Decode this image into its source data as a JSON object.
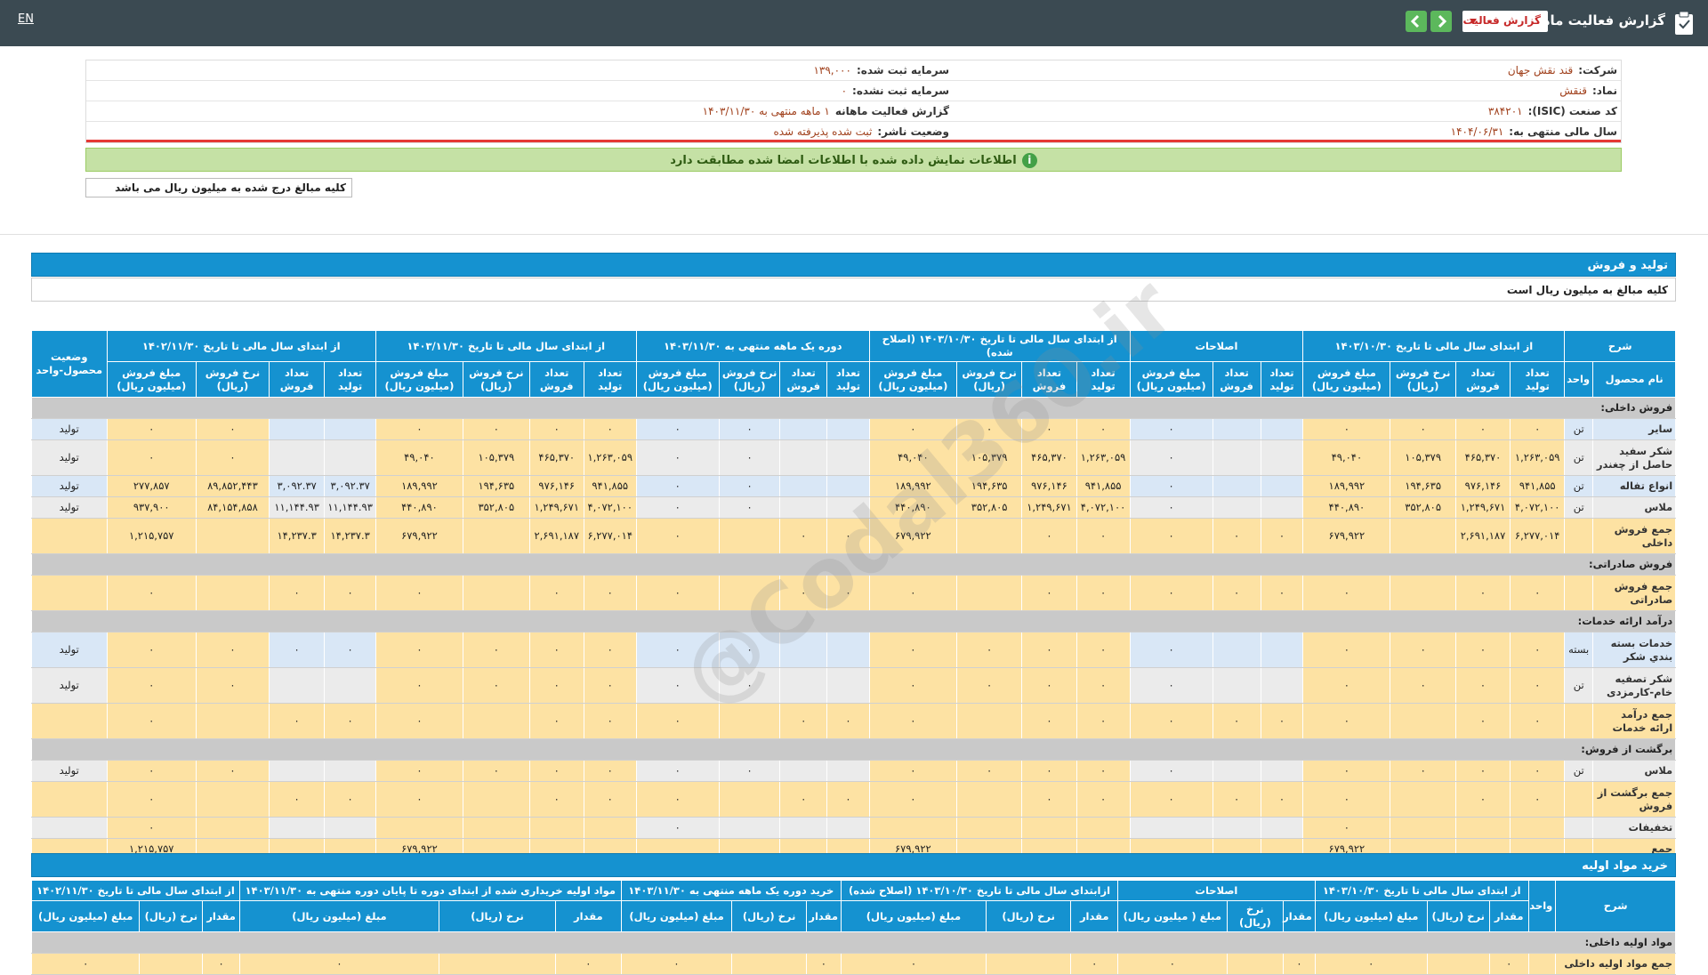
{
  "header": {
    "title": "گزارش فعالیت ماهانه",
    "report_select": "گزارش فعالیت",
    "language": "EN"
  },
  "info": {
    "rows": [
      [
        {
          "label": "شرکت:",
          "value": "قند نقش جهان"
        },
        {
          "label": "سرمایه ثبت شده:",
          "value": "۱۳۹,۰۰۰"
        }
      ],
      [
        {
          "label": "نماد:",
          "value": "قنقش"
        },
        {
          "label": "سرمایه ثبت نشده:",
          "value": "۰"
        }
      ],
      [
        {
          "label": "کد صنعت (ISIC):",
          "value": "۳۸۴۲۰۱"
        },
        {
          "label": "گزارش فعالیت ماهانه",
          "value": "۱ ماهه منتهی به ۱۴۰۳/۱۱/۳۰"
        }
      ],
      [
        {
          "label": "سال مالی منتهی به:",
          "value": "۱۴۰۴/۰۶/۳۱"
        },
        {
          "label": "وضعیت ناشر:",
          "value": "ثبت شده پذیرفته شده"
        }
      ]
    ]
  },
  "notice": "اطلاعات نمایش داده شده با اطلاعات امضا شده مطابقت دارد",
  "amount_note": "کلیه مبالغ درج شده به میلیون ریال می باشد",
  "watermark": "@Codal360.ir",
  "production_sales": {
    "title": "تولید و فروش",
    "subtitle": "کلیه مبالغ به میلیون ریال است",
    "groups": [
      {
        "label": "شرح",
        "sub": [
          "نام محصول",
          "واحد"
        ]
      },
      {
        "label": "از ابتدای سال مالی تا تاریخ ۱۴۰۳/۱۰/۳۰",
        "sub": [
          "تعداد تولید",
          "تعداد فروش",
          "نرخ فروش (ریال)",
          "مبلغ فروش (میلیون ریال)"
        ]
      },
      {
        "label": "اصلاحات",
        "sub": [
          "تعداد تولید",
          "تعداد فروش",
          "مبلغ فروش (میلیون ریال)"
        ]
      },
      {
        "label": "از ابتدای سال مالی تا تاریخ ۱۴۰۳/۱۰/۳۰ (اصلاح شده)",
        "sub": [
          "تعداد تولید",
          "تعداد فروش",
          "نرخ فروش (ریال)",
          "مبلغ فروش (میلیون ریال)"
        ]
      },
      {
        "label": "دوره یک ماهه منتهی به ۱۴۰۳/۱۱/۳۰",
        "sub": [
          "تعداد تولید",
          "تعداد فروش",
          "نرخ فروش (ریال)",
          "مبلغ فروش (میلیون ریال)"
        ]
      },
      {
        "label": "از ابتدای سال مالی تا تاریخ ۱۴۰۳/۱۱/۳۰",
        "sub": [
          "تعداد تولید",
          "تعداد فروش",
          "نرخ فروش (ریال)",
          "مبلغ فروش (میلیون ریال)"
        ]
      },
      {
        "label": "از ابتدای سال مالی تا تاریخ ۱۴۰۲/۱۱/۳۰",
        "sub": [
          "تعداد تولید",
          "تعداد فروش",
          "نرخ فروش (ریال)",
          "مبلغ فروش (میلیون ریال)"
        ]
      },
      {
        "label": "وضعیت محصول-واحد",
        "sub": []
      }
    ],
    "rows": [
      {
        "section": "فروش داخلی:"
      },
      {
        "cells": [
          "سایر",
          "تن",
          "۰",
          "۰",
          "۰",
          "۰",
          null,
          null,
          "۰",
          "۰",
          "۰",
          "۰",
          "۰",
          null,
          null,
          "۰",
          "۰",
          "۰",
          "۰",
          "۰",
          "۰",
          null,
          null,
          "۰",
          "۰",
          "تولید"
        ]
      },
      {
        "cells": [
          "شکر سفید حاصل از چغندر",
          "تن",
          "۱,۲۶۳,۰۵۹",
          "۴۶۵,۳۷۰",
          "۱۰۵,۳۷۹",
          "۴۹,۰۴۰",
          null,
          null,
          "۰",
          "۱,۲۶۳,۰۵۹",
          "۴۶۵,۳۷۰",
          "۱۰۵,۳۷۹",
          "۴۹,۰۴۰",
          null,
          null,
          "۰",
          "۰",
          "۱,۲۶۳,۰۵۹",
          "۴۶۵,۳۷۰",
          "۱۰۵,۳۷۹",
          "۴۹,۰۴۰",
          null,
          null,
          "۰",
          "۰",
          "تولید"
        ]
      },
      {
        "cells": [
          "انواع تفاله",
          "تن",
          "۹۴۱,۸۵۵",
          "۹۷۶,۱۴۶",
          "۱۹۴,۶۳۵",
          "۱۸۹,۹۹۲",
          null,
          null,
          "۰",
          "۹۴۱,۸۵۵",
          "۹۷۶,۱۴۶",
          "۱۹۴,۶۳۵",
          "۱۸۹,۹۹۲",
          null,
          null,
          "۰",
          "۰",
          "۹۴۱,۸۵۵",
          "۹۷۶,۱۴۶",
          "۱۹۴,۶۳۵",
          "۱۸۹,۹۹۲",
          "۳,۰۹۲.۳۷",
          "۳,۰۹۲.۳۷",
          "۸۹,۸۵۲,۴۴۳",
          "۲۷۷,۸۵۷",
          "تولید"
        ]
      },
      {
        "cells": [
          "ملاس",
          "تن",
          "۴,۰۷۲,۱۰۰",
          "۱,۲۴۹,۶۷۱",
          "۳۵۲,۸۰۵",
          "۴۴۰,۸۹۰",
          null,
          null,
          "۰",
          "۴,۰۷۲,۱۰۰",
          "۱,۲۴۹,۶۷۱",
          "۳۵۲,۸۰۵",
          "۴۴۰,۸۹۰",
          null,
          null,
          "۰",
          "۰",
          "۴,۰۷۲,۱۰۰",
          "۱,۲۴۹,۶۷۱",
          "۳۵۲,۸۰۵",
          "۴۴۰,۸۹۰",
          "۱۱,۱۴۴.۹۳",
          "۱۱,۱۴۴.۹۳",
          "۸۴,۱۵۴,۸۵۸",
          "۹۳۷,۹۰۰",
          "تولید"
        ]
      },
      {
        "total": true,
        "cells": [
          "جمع فروش داخلی",
          null,
          "۶,۲۷۷,۰۱۴",
          "۲,۶۹۱,۱۸۷",
          null,
          "۶۷۹,۹۲۲",
          "۰",
          "۰",
          "۰",
          "۰",
          "۰",
          null,
          "۶۷۹,۹۲۲",
          "۰",
          "۰",
          null,
          "۰",
          "۶,۲۷۷,۰۱۴",
          "۲,۶۹۱,۱۸۷",
          null,
          "۶۷۹,۹۲۲",
          "۱۴,۲۳۷.۳",
          "۱۴,۲۳۷.۳",
          null,
          "۱,۲۱۵,۷۵۷",
          null
        ]
      },
      {
        "section": "فروش صادراتی:"
      },
      {
        "total": true,
        "cells": [
          "جمع فروش صادراتی",
          null,
          "۰",
          "۰",
          null,
          "۰",
          "۰",
          "۰",
          "۰",
          "۰",
          "۰",
          null,
          "۰",
          "۰",
          "۰",
          null,
          "۰",
          "۰",
          "۰",
          null,
          "۰",
          "۰",
          "۰",
          null,
          "۰",
          null
        ]
      },
      {
        "section": "درآمد ارائه خدمات:"
      },
      {
        "cells": [
          "خدمات بسته بندي شکر",
          "بسته",
          "۰",
          "۰",
          "۰",
          "۰",
          null,
          null,
          "۰",
          "۰",
          "۰",
          "۰",
          "۰",
          null,
          null,
          "۰",
          "۰",
          "۰",
          "۰",
          "۰",
          "۰",
          "۰",
          "۰",
          "۰",
          "۰",
          "تولید"
        ]
      },
      {
        "cells": [
          "شکر تصفیه خام-کارمزدی",
          "تن",
          "۰",
          "۰",
          "۰",
          "۰",
          null,
          null,
          "۰",
          "۰",
          "۰",
          "۰",
          "۰",
          null,
          null,
          "۰",
          "۰",
          "۰",
          "۰",
          "۰",
          "۰",
          null,
          null,
          "۰",
          "۰",
          "تولید"
        ]
      },
      {
        "total": true,
        "cells": [
          "جمع درآمد ارائه خدمات",
          null,
          "۰",
          "۰",
          null,
          "۰",
          "۰",
          "۰",
          "۰",
          "۰",
          "۰",
          null,
          "۰",
          "۰",
          "۰",
          null,
          "۰",
          "۰",
          "۰",
          null,
          "۰",
          "۰",
          "۰",
          null,
          "۰",
          null
        ]
      },
      {
        "section": "برگشت از فروش:"
      },
      {
        "cells": [
          "ملاس",
          "تن",
          "۰",
          "۰",
          "۰",
          "۰",
          null,
          null,
          "۰",
          "۰",
          "۰",
          "۰",
          "۰",
          null,
          null,
          "۰",
          "۰",
          "۰",
          "۰",
          "۰",
          "۰",
          null,
          null,
          "۰",
          "۰",
          "تولید"
        ]
      },
      {
        "total": true,
        "cells": [
          "جمع برگشت از فروش",
          null,
          "۰",
          "۰",
          null,
          "۰",
          "۰",
          "۰",
          "۰",
          "۰",
          "۰",
          null,
          "۰",
          "۰",
          "۰",
          null,
          "۰",
          "۰",
          "۰",
          null,
          "۰",
          "۰",
          "۰",
          null,
          "۰",
          null
        ]
      },
      {
        "cells": [
          "تخفیفات",
          null,
          null,
          null,
          null,
          "۰",
          null,
          null,
          null,
          null,
          null,
          null,
          null,
          null,
          null,
          null,
          "۰",
          null,
          null,
          null,
          null,
          null,
          null,
          null,
          "۰",
          null
        ]
      },
      {
        "total": true,
        "cells": [
          "جمع",
          null,
          null,
          null,
          null,
          "۶۷۹,۹۲۲",
          null,
          null,
          null,
          null,
          null,
          null,
          "۶۷۹,۹۲۲",
          null,
          null,
          null,
          null,
          null,
          null,
          null,
          "۶۷۹,۹۲۲",
          null,
          null,
          null,
          "۱,۲۱۵,۷۵۷",
          null
        ]
      }
    ]
  },
  "raw_materials": {
    "title": "خرید مواد اولیه",
    "groups": [
      {
        "label": "شرح",
        "sub": []
      },
      {
        "label": "واحد",
        "sub": []
      },
      {
        "label": "از ابتدای سال مالی تا تاریخ ۱۴۰۳/۱۰/۳۰",
        "sub": [
          "مقدار",
          "نرخ (ریال)",
          "مبلغ (میلیون ریال)"
        ]
      },
      {
        "label": "اصلاحات",
        "sub": [
          "مقدار",
          "نرخ (ریال)",
          "مبلغ ( میلیون ریال)"
        ]
      },
      {
        "label": "ازابتدای سال مالی تا تاریخ ۱۴۰۳/۱۰/۳۰ (اصلاح شده)",
        "sub": [
          "مقدار",
          "نرخ (ریال)",
          "مبلغ (میلیون ریال)"
        ]
      },
      {
        "label": "خرید دوره یک ماهه منتهی به ۱۴۰۳/۱۱/۳۰",
        "sub": [
          "مقدار",
          "نرخ (ریال)",
          "مبلغ (میلیون ریال)"
        ]
      },
      {
        "label": "مواد اولیه خریداری شده از ابتدای دوره تا پایان دوره منتهی به ۱۴۰۳/۱۱/۳۰",
        "sub": [
          "مقدار",
          "نرخ (ریال)",
          "مبلغ (میلیون ریال)"
        ]
      },
      {
        "label": "از ابتدای سال مالی تا تاریخ ۱۴۰۲/۱۱/۳۰",
        "sub": [
          "مقدار",
          "نرخ (ریال)",
          "مبلغ (میلیون ریال)"
        ]
      }
    ],
    "rows": [
      {
        "section": "مواد اولیه داخلی:"
      },
      {
        "total": true,
        "cells": [
          "جمع مواد اولیه داخلی",
          null,
          "۰",
          null,
          "۰",
          "۰",
          null,
          "۰",
          "۰",
          null,
          "۰",
          "۰",
          null,
          "۰",
          "۰",
          null,
          "۰",
          "۰",
          null,
          "۰"
        ]
      }
    ]
  }
}
